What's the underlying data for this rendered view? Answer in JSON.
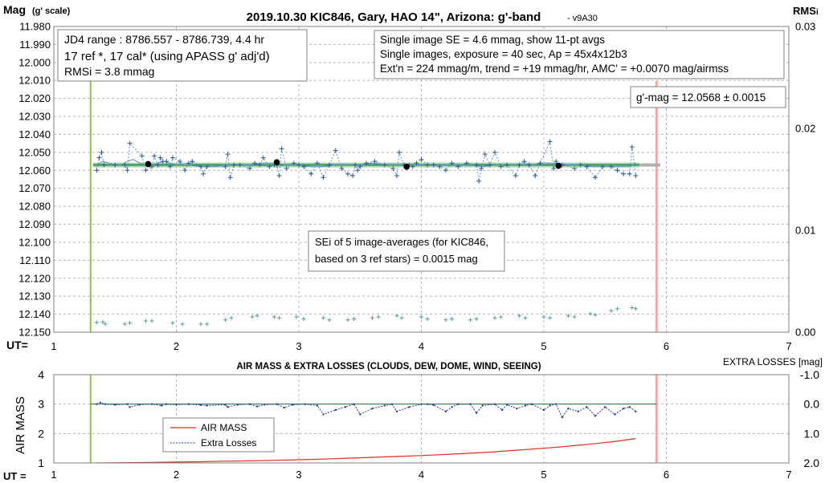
{
  "chart_data": [
    {
      "type": "scatter",
      "title_main": "2019.10.30 KIC846, Gary, HAO 14\", Arizona: g'-band",
      "title_version": "- v9A30",
      "ylabel_main": "Mag",
      "ylabel_sub": "(g' scale)",
      "y2label_main": "RMS",
      "y2label_sub": "i",
      "xlabel": "UT=",
      "xlim": [
        1,
        7
      ],
      "ylim": [
        11.98,
        12.15
      ],
      "ylim_display": "inverted",
      "y2lim": [
        0,
        0.03
      ],
      "x_ticks": [
        "1",
        "2",
        "3",
        "4",
        "5",
        "6",
        "7"
      ],
      "y_ticks": [
        "11.980",
        "11.990",
        "12.000",
        "12.010",
        "12.020",
        "12.030",
        "12.040",
        "12.050",
        "12.060",
        "12.070",
        "12.080",
        "12.090",
        "12.100",
        "12.110",
        "12.120",
        "12.130",
        "12.140",
        "12.150"
      ],
      "y2_ticks": [
        "0.03",
        "0.02",
        "0.01",
        "0.00"
      ],
      "grid": true,
      "colors": {
        "points": "#2e5c8a",
        "running_avg": "#5b8fc8",
        "fit_line": "#2e8b57",
        "fit_bg": "#a8d8a8",
        "extension": "#b0b0b0",
        "green_marker": "#8cc63f",
        "red_marker": "#f4a8a8",
        "rms": "#5a9aa0"
      },
      "vertical_markers": [
        {
          "x": 1.3,
          "color": "#8cc63f"
        },
        {
          "x": 5.92,
          "color": "#f4a8a8"
        }
      ],
      "fit_line": {
        "x": [
          1.32,
          5.78
        ],
        "y": [
          12.057,
          12.057
        ]
      },
      "fit_extension": {
        "x": [
          5.78,
          5.95
        ],
        "y": [
          12.057,
          12.057
        ]
      },
      "series_points": {
        "x": [
          1.35,
          1.37,
          1.39,
          1.41,
          1.5,
          1.58,
          1.6,
          1.62,
          1.72,
          1.75,
          1.8,
          1.82,
          1.85,
          1.87,
          1.89,
          1.92,
          1.95,
          1.97,
          2.03,
          2.07,
          2.1,
          2.13,
          2.2,
          2.22,
          2.25,
          2.4,
          2.42,
          2.44,
          2.47,
          2.52,
          2.6,
          2.64,
          2.68,
          2.71,
          2.76,
          2.8,
          2.82,
          2.84,
          2.86,
          2.9,
          2.96,
          3.0,
          3.04,
          3.1,
          3.15,
          3.2,
          3.25,
          3.3,
          3.35,
          3.4,
          3.44,
          3.46,
          3.48,
          3.5,
          3.55,
          3.62,
          3.7,
          3.77,
          3.8,
          3.82,
          3.86,
          3.9,
          3.93,
          3.96,
          4.0,
          4.05,
          4.1,
          4.15,
          4.2,
          4.25,
          4.3,
          4.37,
          4.45,
          4.47,
          4.49,
          4.52,
          4.56,
          4.6,
          4.65,
          4.7,
          4.77,
          4.8,
          4.84,
          4.88,
          4.93,
          4.97,
          5.05,
          5.08,
          5.1,
          5.12,
          5.15,
          5.25,
          5.3,
          5.35,
          5.42,
          5.48,
          5.55,
          5.6,
          5.65,
          5.7,
          5.72,
          5.75
        ],
        "y": [
          12.06,
          12.053,
          12.05,
          12.057,
          12.057,
          12.057,
          12.06,
          12.045,
          12.052,
          12.06,
          12.058,
          12.052,
          12.057,
          12.053,
          12.055,
          12.055,
          12.058,
          12.053,
          12.055,
          12.06,
          12.056,
          12.055,
          12.058,
          12.062,
          12.058,
          12.058,
          12.051,
          12.064,
          12.057,
          12.057,
          12.059,
          12.056,
          12.057,
          12.053,
          12.058,
          12.057,
          12.057,
          12.063,
          12.048,
          12.059,
          12.056,
          12.057,
          12.058,
          12.062,
          12.056,
          12.064,
          12.057,
          12.049,
          12.059,
          12.062,
          12.063,
          12.057,
          12.06,
          12.058,
          12.056,
          12.055,
          12.057,
          12.059,
          12.063,
          12.05,
          12.057,
          12.057,
          12.058,
          12.056,
          12.054,
          12.057,
          12.057,
          12.058,
          12.06,
          12.056,
          12.058,
          12.056,
          12.057,
          12.066,
          12.059,
          12.051,
          12.057,
          12.05,
          12.058,
          12.057,
          12.063,
          12.057,
          12.055,
          12.057,
          12.063,
          12.056,
          12.044,
          12.059,
          12.055,
          12.058,
          12.057,
          12.059,
          12.057,
          12.058,
          12.064,
          12.058,
          12.058,
          12.06,
          12.062,
          12.062,
          12.047,
          12.063
        ]
      },
      "running_average": {
        "x": [
          1.35,
          1.4,
          1.45,
          1.5,
          1.55,
          1.6,
          1.65,
          1.7,
          1.75,
          1.8,
          1.85,
          1.9,
          1.95,
          2.0,
          2.05,
          2.1,
          2.2,
          2.3,
          2.4,
          2.5,
          2.6,
          2.7,
          2.8,
          2.9,
          3.0,
          3.1,
          3.2,
          3.3,
          3.4,
          3.5,
          3.6,
          3.7,
          3.8,
          3.9,
          4.0,
          4.1,
          4.2,
          4.3,
          4.4,
          4.5,
          4.6,
          4.7,
          4.8,
          4.9,
          5.0,
          5.1,
          5.2,
          5.3,
          5.4,
          5.5,
          5.6,
          5.7,
          5.75
        ],
        "y": [
          12.057,
          12.055,
          12.056,
          12.057,
          12.057,
          12.055,
          12.054,
          12.056,
          12.057,
          12.057,
          12.056,
          12.055,
          12.056,
          12.057,
          12.057,
          12.057,
          12.058,
          12.058,
          12.057,
          12.057,
          12.057,
          12.056,
          12.056,
          12.057,
          12.057,
          12.058,
          12.058,
          12.057,
          12.057,
          12.057,
          12.056,
          12.057,
          12.057,
          12.057,
          12.057,
          12.057,
          12.057,
          12.057,
          12.057,
          12.058,
          12.057,
          12.057,
          12.057,
          12.057,
          12.056,
          12.056,
          12.057,
          12.057,
          12.058,
          12.058,
          12.058,
          12.058,
          12.056
        ]
      },
      "image_averages": {
        "x": [
          1.77,
          2.82,
          3.88,
          5.12
        ],
        "y": [
          12.0565,
          12.0555,
          12.058,
          12.0575
        ]
      },
      "rms_points": {
        "x": [
          1.35,
          1.4,
          1.42,
          1.58,
          1.62,
          1.75,
          1.8,
          1.97,
          2.05,
          2.2,
          2.25,
          2.4,
          2.45,
          2.62,
          2.66,
          2.8,
          2.84,
          2.98,
          3.04,
          3.2,
          3.25,
          3.4,
          3.45,
          3.6,
          3.65,
          3.8,
          3.84,
          4.0,
          4.05,
          4.2,
          4.25,
          4.4,
          4.45,
          4.6,
          4.65,
          4.8,
          4.85,
          5.0,
          5.05,
          5.2,
          5.25,
          5.38,
          5.42,
          5.55,
          5.6,
          5.72,
          5.75
        ],
        "y": [
          0.00095,
          0.001,
          0.0008,
          0.0008,
          0.0009,
          0.0011,
          0.0011,
          0.0009,
          0.0008,
          0.0008,
          0.0008,
          0.0012,
          0.0014,
          0.0015,
          0.0016,
          0.0015,
          0.0014,
          0.0015,
          0.0013,
          0.0014,
          0.0012,
          0.0012,
          0.0013,
          0.0014,
          0.0015,
          0.0016,
          0.0014,
          0.0015,
          0.0013,
          0.0012,
          0.0013,
          0.0012,
          0.0013,
          0.0014,
          0.0015,
          0.0016,
          0.0014,
          0.0015,
          0.0014,
          0.0016,
          0.0015,
          0.0018,
          0.0017,
          0.0021,
          0.0023,
          0.0024,
          0.0023
        ]
      },
      "annotations": {
        "box_jd": [
          "JD4 range : 8786.557 - 8786.739, 4.4 hr",
          "17 ref *, 17 cal* (using APASS g' adj'd)",
          "RMSi = 3.8 mmag"
        ],
        "box_info": [
          "Single image SE = 4.6 mmag, show 11-pt avgs",
          "Single images, exposure = 40 sec, Ap = 45x4x12b3",
          "Ext'n = 224 mmag/m, trend = +19 mmag/hr, AMC' = +0.0070 mag/airmss"
        ],
        "box_gmag": "g'-mag = 12.0568 ± 0.0015",
        "box_sei": [
          "SEi of 5 image-averages (for KIC846,",
          "based on 3 ref stars) = 0.0015 mag"
        ]
      }
    },
    {
      "type": "line",
      "title": "AIR MASS & EXTRA LOSSES (CLOUDS, DEW, DOME, WIND, SEEING)",
      "ylabel": "AIR MASS",
      "y2label": "EXTRA LOSSES [mag]",
      "xlabel": "UT =",
      "xlim": [
        1,
        7
      ],
      "ylim": [
        1,
        4
      ],
      "y2lim": [
        -1.0,
        2.0
      ],
      "y2_inverted": true,
      "x_ticks": [
        "1",
        "2",
        "3",
        "4",
        "5",
        "6",
        "7"
      ],
      "y_ticks": [
        "1",
        "2",
        "3",
        "4"
      ],
      "y2_ticks": [
        "-1.0",
        "0.0",
        "1.0",
        "2.0"
      ],
      "grid": true,
      "legend": {
        "placement": "lower-left-inside",
        "entries": [
          "AIR MASS",
          "Extra Losses"
        ]
      },
      "colors": {
        "air_mass": "#e03020",
        "extra_losses": "#1f3f9f",
        "zero_line": "#2e6b3e"
      },
      "series": [
        {
          "name": "AIR MASS",
          "x": [
            1.35,
            1.6,
            1.8,
            2.0,
            2.2,
            2.4,
            2.6,
            2.8,
            3.0,
            3.2,
            3.4,
            3.6,
            3.8,
            4.0,
            4.2,
            4.4,
            4.6,
            4.8,
            5.0,
            5.2,
            5.4,
            5.6,
            5.75
          ],
          "values": [
            1.0,
            1.01,
            1.02,
            1.03,
            1.04,
            1.06,
            1.07,
            1.09,
            1.11,
            1.13,
            1.16,
            1.19,
            1.22,
            1.25,
            1.29,
            1.33,
            1.38,
            1.44,
            1.5,
            1.57,
            1.65,
            1.74,
            1.83
          ]
        },
        {
          "name": "Extra Losses",
          "x": [
            1.35,
            1.38,
            1.42,
            1.5,
            1.6,
            1.62,
            1.7,
            1.8,
            1.88,
            1.92,
            2.0,
            2.1,
            2.2,
            2.25,
            2.4,
            2.42,
            2.5,
            2.6,
            2.66,
            2.72,
            2.82,
            2.88,
            2.95,
            3.05,
            3.15,
            3.2,
            3.3,
            3.38,
            3.45,
            3.5,
            3.6,
            3.7,
            3.76,
            3.8,
            3.9,
            4.0,
            4.05,
            4.1,
            4.2,
            4.25,
            4.3,
            4.4,
            4.45,
            4.5,
            4.6,
            4.66,
            4.7,
            4.78,
            4.85,
            4.9,
            5.0,
            5.05,
            5.1,
            5.15,
            5.2,
            5.28,
            5.35,
            5.42,
            5.5,
            5.58,
            5.65,
            5.7,
            5.75
          ],
          "values": [
            0.0,
            -0.05,
            0.0,
            0.02,
            0.0,
            0.1,
            0.02,
            0.0,
            0.05,
            0.0,
            0.02,
            0.0,
            0.03,
            0.05,
            0.02,
            0.1,
            0.02,
            0.0,
            0.08,
            0.02,
            0.0,
            0.12,
            0.02,
            0.0,
            0.05,
            0.35,
            0.2,
            0.1,
            0.0,
            0.35,
            0.15,
            0.05,
            0.0,
            0.25,
            0.1,
            0.0,
            0.0,
            0.03,
            0.25,
            0.1,
            0.0,
            0.0,
            0.3,
            0.05,
            0.0,
            0.2,
            0.02,
            0.15,
            0.05,
            0.0,
            0.2,
            0.05,
            0.0,
            0.45,
            0.15,
            0.25,
            0.1,
            0.4,
            0.1,
            0.35,
            0.15,
            0.1,
            0.25
          ]
        }
      ],
      "zero_line_y2": 0.0,
      "vertical_markers": [
        {
          "x": 1.3,
          "color": "#8cc63f"
        },
        {
          "x": 5.92,
          "color": "#f4a8a8"
        }
      ]
    }
  ]
}
